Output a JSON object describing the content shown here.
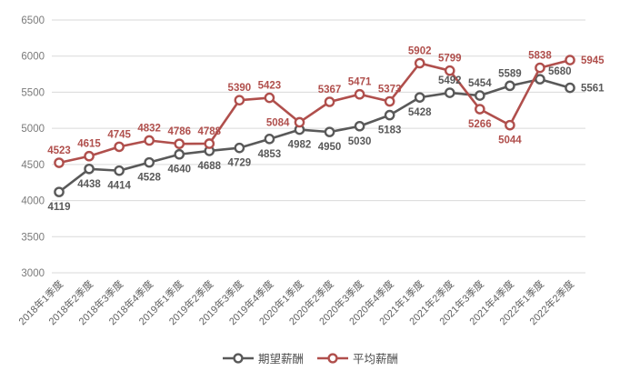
{
  "legend": {
    "items": [
      {
        "label": "期望薪酬"
      },
      {
        "label": "平均薪酬"
      }
    ]
  },
  "chart_data": {
    "type": "line",
    "title": "",
    "xlabel": "",
    "ylabel": "",
    "categories": [
      "2018年1季度",
      "2018年2季度",
      "2018年3季度",
      "2018年4季度",
      "2019年1季度",
      "2019年2季度",
      "2019年3季度",
      "2019年4季度",
      "2020年1季度",
      "2020年2季度",
      "2020年3季度",
      "2020年4季度",
      "2021年1季度",
      "2021年2季度",
      "2021年3季度",
      "2021年4季度",
      "2022年1季度",
      "2022年2季度"
    ],
    "series": [
      {
        "name": "期望薪酬",
        "color": "#595959",
        "values": [
          4119,
          4438,
          4414,
          4528,
          4640,
          4688,
          4729,
          4853,
          4982,
          4950,
          5030,
          5183,
          5428,
          5492,
          5454,
          5589,
          5680,
          5561
        ],
        "label_pos": [
          "below",
          "below",
          "below",
          "below",
          "below",
          "below",
          "below",
          "below",
          "below",
          "below",
          "below",
          "below",
          "below",
          "above",
          "above",
          "above",
          "above-right",
          "right"
        ]
      },
      {
        "name": "平均薪酬",
        "color": "#b04f4c",
        "values": [
          4523,
          4615,
          4745,
          4832,
          4786,
          4788,
          5390,
          5423,
          5084,
          5367,
          5471,
          5373,
          5902,
          5799,
          5266,
          5044,
          5838,
          5945
        ],
        "label_pos": [
          "above",
          "above",
          "above",
          "above",
          "above",
          "above",
          "above",
          "above",
          "left",
          "above",
          "above",
          "above",
          "above",
          "above",
          "below",
          "below",
          "above",
          "right"
        ]
      }
    ],
    "ylim": [
      3000,
      6500
    ],
    "yticks": [
      3000,
      3500,
      4000,
      4500,
      5000,
      5500,
      6000,
      6500
    ],
    "grid": true,
    "legend_position": "bottom",
    "marker": "open-circle",
    "colors": {
      "gridline": "#d9d9d9",
      "y_tick_label": "#7a7a7a",
      "x_tick_label": "#616161",
      "background": "#ffffff"
    }
  }
}
